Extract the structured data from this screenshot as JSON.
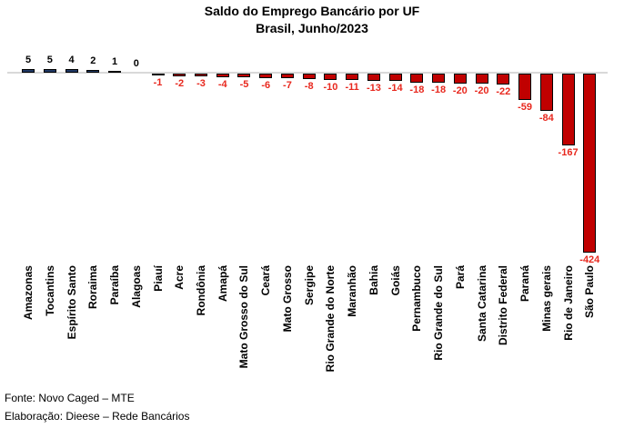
{
  "chart_data": {
    "type": "bar",
    "title": "Saldo do Emprego Bancário por UF",
    "subtitle": "Brasil, Junho/2023",
    "categories": [
      "Amazonas",
      "Tocantins",
      "Espírito Santo",
      "Roraima",
      "Paraíba",
      "Alagoas",
      "Piauí",
      "Acre",
      "Rondônia",
      "Amapá",
      "Mato Grosso do Sul",
      "Ceará",
      "Mato Grosso",
      "Sergipe",
      "Rio Grande do Norte",
      "Maranhão",
      "Bahia",
      "Goiás",
      "Pernambuco",
      "Rio Grande do Sul",
      "Pará",
      "Santa Catarina",
      "Distrito Federal",
      "Paraná",
      "Minas gerais",
      "Rio de Janeiro",
      "São Paulo"
    ],
    "values": [
      5,
      5,
      4,
      2,
      1,
      0,
      -1,
      -2,
      -3,
      -4,
      -5,
      -6,
      -7,
      -8,
      -10,
      -11,
      -13,
      -14,
      -18,
      -18,
      -20,
      -20,
      -22,
      -59,
      -84,
      -167,
      -424
    ],
    "ylim": [
      -424,
      5
    ],
    "grid": false,
    "legend": false,
    "data_labels": "outside-end",
    "colors": {
      "positive_bar": "#1f3864",
      "negative_bar": "#c00000",
      "bar_border": "#000000",
      "positive_label": "#000000",
      "negative_label": "#e8281e",
      "axis_line": "#d9d9d9"
    }
  },
  "footer": {
    "source": "Fonte: Novo Caged – MTE",
    "elaboration": "Elaboração: Dieese – Rede Bancários"
  }
}
